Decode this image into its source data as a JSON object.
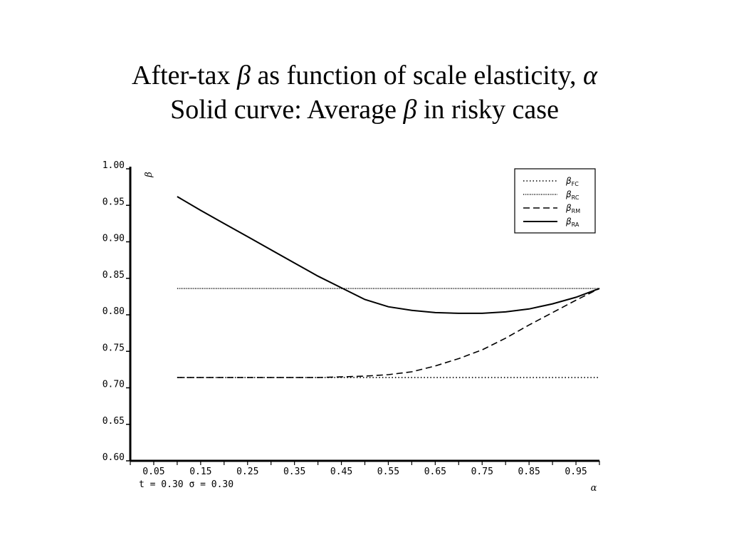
{
  "title": {
    "line1_a": "After-tax ",
    "line1_beta": "β",
    "line1_b": " as function of scale elasticity, ",
    "line1_alpha": "α",
    "line2_a": "Solid curve:  Average ",
    "line2_beta": "β",
    "line2_b": " in risky case"
  },
  "chart_data": {
    "type": "line",
    "xlabel": "α",
    "ylabel": "β",
    "xlim": [
      0.0,
      1.0
    ],
    "ylim": [
      0.6,
      1.0
    ],
    "x_ticks": [
      "0.05",
      "0.15",
      "0.25",
      "0.35",
      "0.45",
      "0.55",
      "0.65",
      "0.75",
      "0.85",
      "0.95"
    ],
    "y_ticks": [
      "1.00",
      "0.95",
      "0.90",
      "0.85",
      "0.80",
      "0.75",
      "0.70",
      "0.65",
      "0.60"
    ],
    "params_text": "t = 0.30    σ = 0.30",
    "legend_position": "top-right",
    "series": [
      {
        "name": "β",
        "sub": "FC",
        "style": "dotted",
        "x": [
          0.1,
          1.0
        ],
        "values": [
          0.714,
          0.714
        ]
      },
      {
        "name": "β",
        "sub": "RC",
        "style": "densely-dotted",
        "x": [
          0.1,
          1.0
        ],
        "values": [
          0.836,
          0.836
        ]
      },
      {
        "name": "β",
        "sub": "RM",
        "style": "dashed",
        "x": [
          0.1,
          0.2,
          0.3,
          0.4,
          0.45,
          0.5,
          0.55,
          0.6,
          0.65,
          0.7,
          0.75,
          0.8,
          0.85,
          0.9,
          0.95,
          1.0
        ],
        "values": [
          0.714,
          0.714,
          0.714,
          0.714,
          0.715,
          0.716,
          0.718,
          0.722,
          0.73,
          0.74,
          0.752,
          0.768,
          0.786,
          0.803,
          0.82,
          0.836
        ]
      },
      {
        "name": "β",
        "sub": "RA",
        "style": "solid",
        "x": [
          0.1,
          0.15,
          0.2,
          0.25,
          0.3,
          0.35,
          0.4,
          0.45,
          0.5,
          0.55,
          0.6,
          0.65,
          0.7,
          0.75,
          0.8,
          0.85,
          0.9,
          0.95,
          1.0
        ],
        "values": [
          0.962,
          0.943,
          0.925,
          0.907,
          0.889,
          0.871,
          0.853,
          0.837,
          0.821,
          0.811,
          0.806,
          0.803,
          0.802,
          0.802,
          0.804,
          0.808,
          0.815,
          0.824,
          0.836
        ]
      }
    ]
  }
}
